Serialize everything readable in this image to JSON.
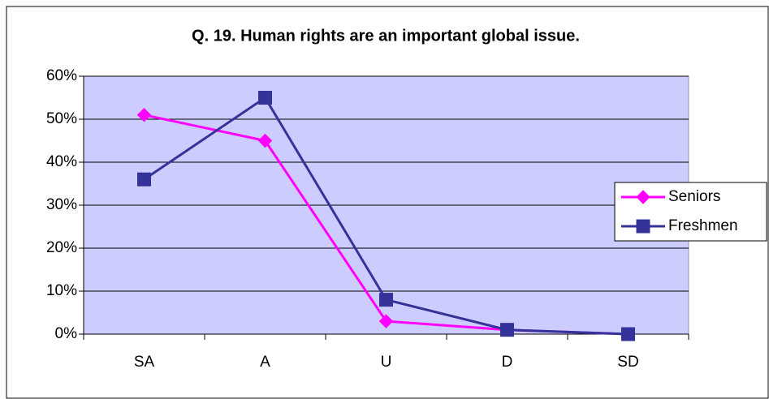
{
  "chart_data": {
    "type": "line",
    "title": "Q. 19. Human rights are an important global issue.",
    "categories": [
      "SA",
      "A",
      "U",
      "D",
      "SD"
    ],
    "series": [
      {
        "name": "Seniors",
        "color": "#ff00ff",
        "marker": "diamond",
        "values": [
          51,
          45,
          3,
          1,
          0
        ]
      },
      {
        "name": "Freshmen",
        "color": "#333399",
        "marker": "square",
        "values": [
          36,
          55,
          8,
          1,
          0
        ]
      }
    ],
    "ylim": [
      0,
      60
    ],
    "yticks": [
      {
        "value": 0,
        "label": "0%"
      },
      {
        "value": 10,
        "label": "10%"
      },
      {
        "value": 20,
        "label": "20%"
      },
      {
        "value": 30,
        "label": "30%"
      },
      {
        "value": 40,
        "label": "40%"
      },
      {
        "value": 50,
        "label": "50%"
      },
      {
        "value": 60,
        "label": "60%"
      }
    ],
    "grid": true,
    "legend": "right",
    "plot_background": "#ccccff"
  }
}
